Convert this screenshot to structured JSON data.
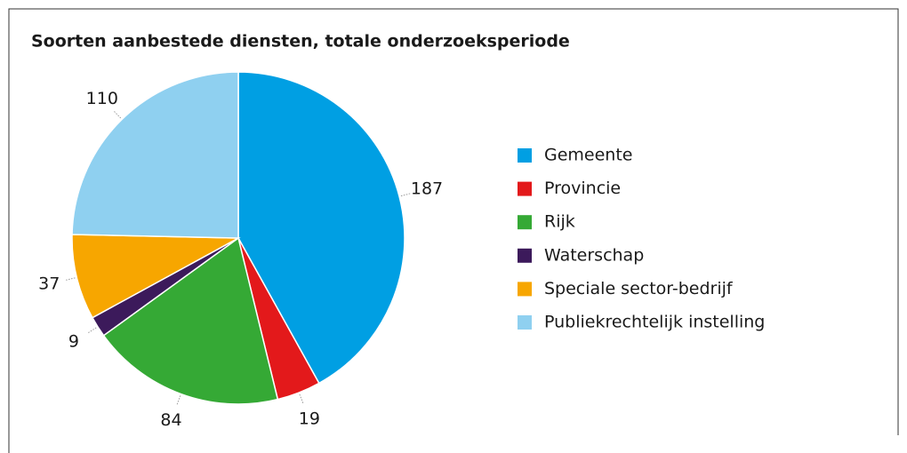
{
  "chart_data": {
    "type": "pie",
    "title": "Soorten aanbestede diensten, totale onderzoeksperiode",
    "categories": [
      "Gemeente",
      "Provincie",
      "Rijk",
      "Waterschap",
      "Speciale sector-bedrijf",
      "Publiekrechtelijk instelling"
    ],
    "values": [
      187,
      19,
      84,
      9,
      37,
      110
    ],
    "colors": [
      "#009fe3",
      "#e3191b",
      "#35a935",
      "#3c1a5b",
      "#f7a600",
      "#8fd0f0"
    ],
    "legend": "right"
  }
}
